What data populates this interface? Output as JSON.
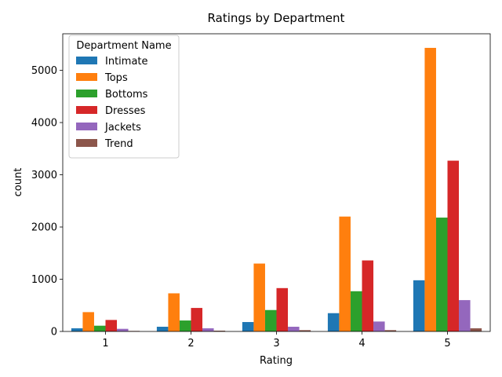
{
  "chart_data": {
    "type": "bar",
    "title": "Ratings by Department",
    "xlabel": "Rating",
    "ylabel": "count",
    "categories": [
      "1",
      "2",
      "3",
      "4",
      "5"
    ],
    "ylim": [
      0,
      5700
    ],
    "yticks": [
      0,
      1000,
      2000,
      3000,
      4000,
      5000
    ],
    "legend": {
      "title": "Department Name",
      "placement": "top-left"
    },
    "series": [
      {
        "name": "Intimate",
        "color": "#1f77b4",
        "values": [
          60,
          90,
          180,
          350,
          980
        ]
      },
      {
        "name": "Tops",
        "color": "#ff7f0e",
        "values": [
          370,
          730,
          1300,
          2200,
          5430
        ]
      },
      {
        "name": "Bottoms",
        "color": "#2ca02c",
        "values": [
          110,
          210,
          410,
          770,
          2180
        ]
      },
      {
        "name": "Dresses",
        "color": "#d62728",
        "values": [
          220,
          450,
          830,
          1360,
          3270
        ]
      },
      {
        "name": "Jackets",
        "color": "#9467bd",
        "values": [
          50,
          60,
          90,
          190,
          600
        ]
      },
      {
        "name": "Trend",
        "color": "#8c564b",
        "values": [
          10,
          15,
          25,
          25,
          60
        ]
      }
    ]
  }
}
